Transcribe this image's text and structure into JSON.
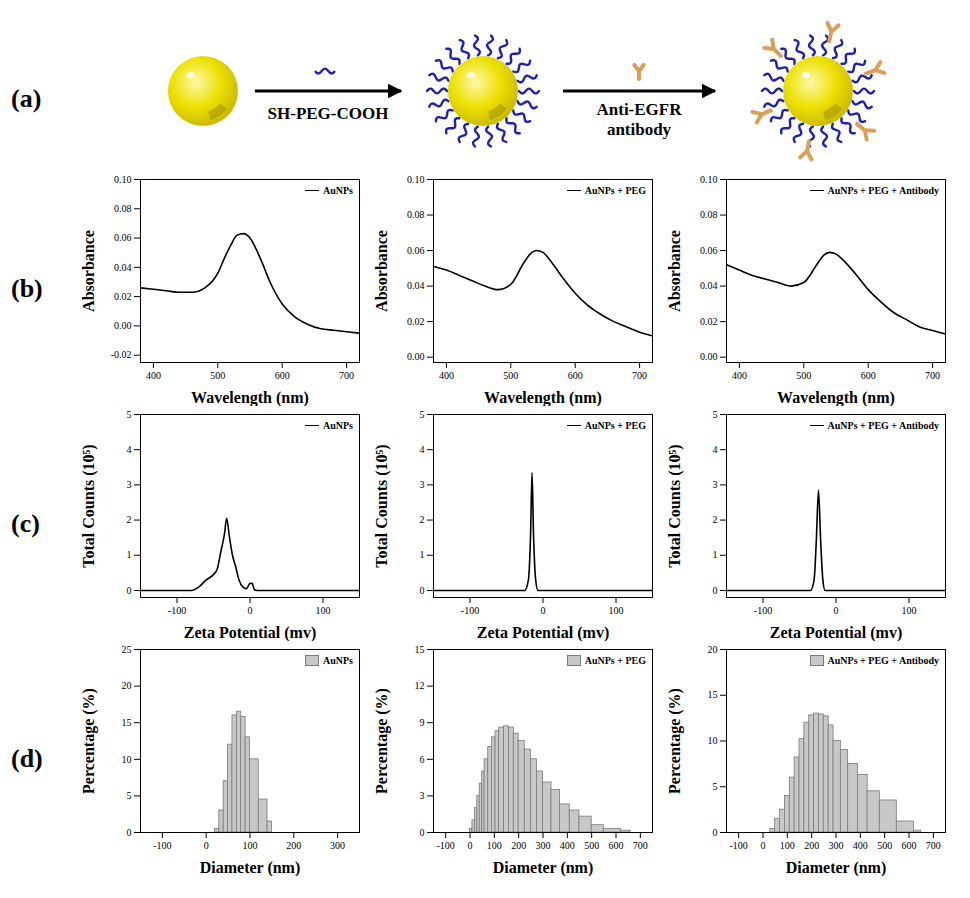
{
  "diagram": {
    "label": "(a)",
    "reagents": [
      "SH-PEG-COOH",
      "Anti-EGFR antibody"
    ]
  },
  "row_labels": [
    "(b)",
    "(c)",
    "(d)"
  ],
  "chart_data": [
    {
      "type": "line",
      "x_label": "Wavelength (nm)",
      "y_label": "Absorbance",
      "xlim": [
        380,
        720
      ],
      "xticks": [
        400,
        500,
        600,
        700
      ],
      "ylim": [
        -0.025,
        0.1
      ],
      "yticks": [
        -0.02,
        {
          "value": 0,
          "label": "0.00"
        },
        0.02,
        0.04,
        0.06,
        0.08,
        {
          "value": 0.1,
          "label": "0.10"
        }
      ],
      "grid": false,
      "legend": "top-right",
      "x": [
        380,
        400,
        420,
        440,
        460,
        480,
        500,
        510,
        520,
        530,
        540,
        550,
        560,
        570,
        580,
        600,
        620,
        640,
        660,
        680,
        700,
        720
      ],
      "series": [
        {
          "name": "AuNPs",
          "color": "#000000",
          "values": [
            0.026,
            0.025,
            0.024,
            0.023,
            0.023,
            0.026,
            0.036,
            0.046,
            0.055,
            0.062,
            0.063,
            0.06,
            0.052,
            0.042,
            0.031,
            0.015,
            0.006,
            0.001,
            -0.002,
            -0.003,
            -0.004,
            -0.005
          ]
        }
      ]
    },
    {
      "type": "line",
      "x_label": "Wavelength (nm)",
      "y_label": "Absorbance",
      "xlim": [
        380,
        720
      ],
      "xticks": [
        400,
        500,
        600,
        700
      ],
      "ylim": [
        -0.003,
        0.1
      ],
      "yticks": [
        {
          "value": 0,
          "label": "0.00"
        },
        0.02,
        0.04,
        0.06,
        0.08,
        {
          "value": 0.1,
          "label": "0.10"
        }
      ],
      "grid": false,
      "legend": "top-right",
      "x": [
        380,
        400,
        420,
        440,
        460,
        480,
        500,
        520,
        530,
        540,
        550,
        560,
        580,
        600,
        620,
        640,
        660,
        680,
        700,
        720
      ],
      "series": [
        {
          "name": "AuNPs + PEG",
          "color": "#000000",
          "values": [
            0.051,
            0.049,
            0.046,
            0.043,
            0.04,
            0.038,
            0.041,
            0.053,
            0.058,
            0.06,
            0.059,
            0.055,
            0.045,
            0.036,
            0.029,
            0.024,
            0.02,
            0.017,
            0.014,
            0.012
          ]
        }
      ]
    },
    {
      "type": "line",
      "x_label": "Wavelength (nm)",
      "y_label": "Absorbance",
      "xlim": [
        380,
        720
      ],
      "xticks": [
        400,
        500,
        600,
        700
      ],
      "ylim": [
        -0.003,
        0.1
      ],
      "yticks": [
        {
          "value": 0,
          "label": "0.00"
        },
        0.02,
        0.04,
        0.06,
        0.08,
        {
          "value": 0.1,
          "label": "0.10"
        }
      ],
      "grid": false,
      "legend": "top-right",
      "x": [
        380,
        400,
        420,
        440,
        460,
        480,
        500,
        520,
        530,
        540,
        550,
        560,
        580,
        600,
        620,
        640,
        660,
        680,
        700,
        720
      ],
      "series": [
        {
          "name": "AuNPs + PEG + Antibody",
          "color": "#000000",
          "values": [
            0.052,
            0.049,
            0.046,
            0.044,
            0.042,
            0.04,
            0.042,
            0.052,
            0.057,
            0.059,
            0.058,
            0.055,
            0.047,
            0.038,
            0.031,
            0.025,
            0.021,
            0.017,
            0.015,
            0.013
          ]
        }
      ]
    },
    {
      "type": "line",
      "x_label": "Zeta Potential (mv)",
      "y_label": "Total Counts (10⁵)",
      "xlim": [
        -150,
        150
      ],
      "xticks": [
        -100,
        0,
        100
      ],
      "ylim": [
        -0.2,
        5
      ],
      "yticks": [
        0,
        1,
        2,
        3,
        4,
        5
      ],
      "grid": false,
      "legend": "top-right",
      "x": [
        -150,
        -80,
        -70,
        -60,
        -50,
        -45,
        -40,
        -35,
        -32,
        -28,
        -24,
        -20,
        -15,
        -10,
        -5,
        0,
        3,
        6,
        10,
        150
      ],
      "series": [
        {
          "name": "AuNPs",
          "color": "#000000",
          "values": [
            0,
            0,
            0.1,
            0.3,
            0.45,
            0.6,
            1.1,
            1.6,
            2.05,
            1.5,
            1.0,
            0.7,
            0.3,
            0.1,
            0.05,
            0.2,
            0.2,
            0.02,
            0,
            0
          ]
        }
      ]
    },
    {
      "type": "line",
      "x_label": "Zeta Potential (mv)",
      "y_label": "Total Counts (10⁵)",
      "xlim": [
        -150,
        150
      ],
      "xticks": [
        -100,
        0,
        100
      ],
      "ylim": [
        -0.2,
        5
      ],
      "yticks": [
        0,
        1,
        2,
        3,
        4,
        5
      ],
      "grid": false,
      "legend": "top-right",
      "x": [
        -150,
        -25,
        -20,
        -17,
        -15,
        -13,
        -10,
        -7,
        150
      ],
      "series": [
        {
          "name": "AuNPs + PEG",
          "color": "#000000",
          "values": [
            0,
            0,
            0.3,
            1.6,
            3.35,
            1.6,
            0.3,
            0,
            0
          ]
        }
      ]
    },
    {
      "type": "line",
      "x_label": "Zeta Potential (mv)",
      "y_label": "Total Counts (10⁵)",
      "xlim": [
        -150,
        150
      ],
      "xticks": [
        -100,
        0,
        100
      ],
      "ylim": [
        -0.2,
        5
      ],
      "yticks": [
        0,
        1,
        2,
        3,
        4,
        5
      ],
      "grid": false,
      "legend": "top-right",
      "x": [
        -150,
        -35,
        -30,
        -27,
        -24,
        -21,
        -18,
        -15,
        150
      ],
      "series": [
        {
          "name": "AuNPs + PEG + Antibody",
          "color": "#000000",
          "values": [
            0,
            0,
            0.3,
            1.4,
            2.85,
            1.4,
            0.3,
            0,
            0
          ]
        }
      ]
    },
    {
      "type": "histogram",
      "x_label": "Diameter (nm)",
      "y_label": "Percentage (%)",
      "xlim": [
        -150,
        350
      ],
      "xticks": [
        -100,
        0,
        100,
        200,
        300
      ],
      "ylim": [
        0,
        25
      ],
      "yticks": [
        0,
        5,
        10,
        15,
        20,
        25
      ],
      "grid": false,
      "legend": "top-right",
      "bins": [
        20,
        30,
        40,
        50,
        60,
        70,
        80,
        90,
        100,
        120,
        140,
        150
      ],
      "series": [
        {
          "name": "AuNPs",
          "color": "#c8c8c8",
          "values": [
            0.5,
            3,
            7,
            12,
            16,
            16.5,
            15.8,
            13,
            10,
            4.5,
            1.5
          ]
        }
      ]
    },
    {
      "type": "histogram",
      "x_label": "Diameter (nm)",
      "y_label": "Percentage (%)",
      "xlim": [
        -150,
        750
      ],
      "xticks": [
        -100,
        0,
        100,
        200,
        300,
        400,
        500,
        600,
        700
      ],
      "ylim": [
        0,
        15
      ],
      "yticks": [
        0,
        3,
        6,
        9,
        12,
        15
      ],
      "grid": false,
      "legend": "top-right",
      "bins": [
        0,
        10,
        20,
        30,
        40,
        50,
        60,
        75,
        90,
        105,
        120,
        140,
        160,
        180,
        200,
        225,
        250,
        275,
        300,
        335,
        370,
        410,
        450,
        500,
        550,
        620,
        660
      ],
      "series": [
        {
          "name": "AuNPs + PEG",
          "color": "#c8c8c8",
          "values": [
            0.3,
            1.0,
            2.0,
            3.0,
            4.0,
            5.0,
            6.0,
            7.0,
            7.8,
            8.3,
            8.6,
            8.7,
            8.6,
            8.1,
            7.5,
            6.8,
            6.0,
            5.0,
            4.1,
            3.5,
            2.3,
            1.8,
            1.3,
            0.6,
            0.3,
            0.15
          ]
        }
      ]
    },
    {
      "type": "histogram",
      "x_label": "Diameter (nm)",
      "y_label": "Percentage (%)",
      "xlim": [
        -150,
        750
      ],
      "xticks": [
        -100,
        0,
        100,
        200,
        300,
        400,
        500,
        600,
        700
      ],
      "ylim": [
        0,
        20
      ],
      "yticks": [
        0,
        5,
        10,
        15,
        20
      ],
      "grid": false,
      "legend": "top-right",
      "bins": [
        30,
        50,
        70,
        90,
        110,
        130,
        150,
        170,
        190,
        210,
        230,
        250,
        270,
        290,
        320,
        350,
        390,
        430,
        480,
        550,
        620,
        650
      ],
      "series": [
        {
          "name": "AuNPs + PEG + Antibody",
          "color": "#c8c8c8",
          "values": [
            0.4,
            1.5,
            2.5,
            4.0,
            6.0,
            8.2,
            10.2,
            12.0,
            12.8,
            13.0,
            12.9,
            12.7,
            11.7,
            10.0,
            9.0,
            7.5,
            6.3,
            4.5,
            3.5,
            1.2,
            0.2
          ]
        }
      ]
    }
  ]
}
